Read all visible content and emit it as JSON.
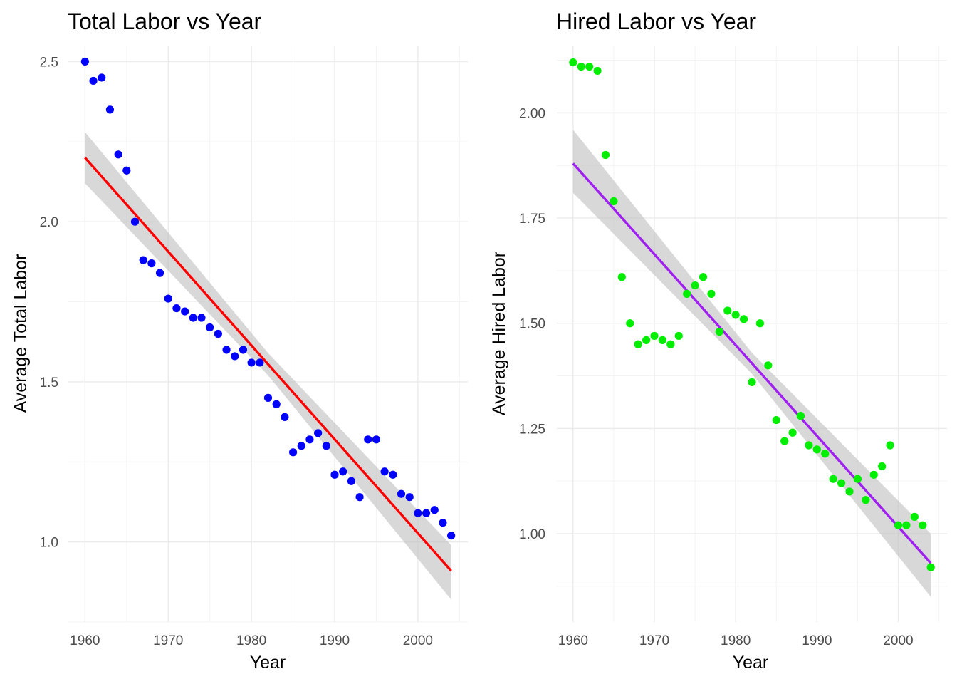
{
  "chart_data": [
    {
      "type": "scatter",
      "title": "Total Labor vs Year",
      "xlabel": "Year",
      "ylabel": "Average Total Labor",
      "xlim": [
        1958,
        2006
      ],
      "ylim": [
        0.75,
        2.55
      ],
      "x_ticks": [
        1960,
        1970,
        1980,
        1990,
        2000
      ],
      "x_tick_labels": [
        "1960",
        "1970",
        "1980",
        "1990",
        "2000"
      ],
      "y_ticks": [
        1.0,
        1.5,
        2.0,
        2.5
      ],
      "y_tick_labels": [
        "1.0",
        "1.5",
        "2.0",
        "2.5"
      ],
      "grid": true,
      "point_color": "#0000ff",
      "trend_color": "#ff0000",
      "band_color": "#bebebe",
      "x": [
        1960,
        1961,
        1962,
        1963,
        1964,
        1965,
        1966,
        1967,
        1968,
        1969,
        1970,
        1971,
        1972,
        1973,
        1974,
        1975,
        1976,
        1977,
        1978,
        1979,
        1980,
        1981,
        1982,
        1983,
        1984,
        1985,
        1986,
        1987,
        1988,
        1989,
        1990,
        1991,
        1992,
        1993,
        1994,
        1995,
        1996,
        1997,
        1998,
        1999,
        2000,
        2001,
        2002,
        2003,
        2004
      ],
      "y": [
        2.5,
        2.44,
        2.45,
        2.35,
        2.21,
        2.16,
        2.0,
        1.88,
        1.87,
        1.84,
        1.76,
        1.73,
        1.72,
        1.7,
        1.7,
        1.67,
        1.65,
        1.6,
        1.58,
        1.6,
        1.56,
        1.56,
        1.45,
        1.43,
        1.39,
        1.28,
        1.3,
        1.32,
        1.34,
        1.3,
        1.21,
        1.22,
        1.19,
        1.14,
        1.32,
        1.32,
        1.22,
        1.21,
        1.15,
        1.14,
        1.09,
        1.09,
        1.1,
        1.06,
        1.02
      ],
      "trend": {
        "x0": 1960,
        "y0": 2.2,
        "x1": 2004,
        "y1": 0.91
      },
      "band": {
        "lower0": 2.12,
        "upper0": 2.28,
        "lowerMid": 1.52,
        "upperMid": 1.59,
        "lower1": 0.82,
        "upper1": 0.99
      }
    },
    {
      "type": "scatter",
      "title": "Hired Labor vs Year",
      "xlabel": "Year",
      "ylabel": "Average Hired Labor",
      "xlim": [
        1958,
        2006
      ],
      "ylim": [
        0.79,
        2.16
      ],
      "x_ticks": [
        1960,
        1970,
        1980,
        1990,
        2000
      ],
      "x_tick_labels": [
        "1960",
        "1970",
        "1980",
        "1990",
        "2000"
      ],
      "y_ticks": [
        1.0,
        1.25,
        1.5,
        1.75,
        2.0
      ],
      "y_tick_labels": [
        "1.00",
        "1.25",
        "1.50",
        "1.75",
        "2.00"
      ],
      "grid": true,
      "point_color": "#00ee00",
      "trend_color": "#a020f0",
      "band_color": "#bebebe",
      "x": [
        1960,
        1961,
        1962,
        1963,
        1964,
        1965,
        1966,
        1967,
        1968,
        1969,
        1970,
        1971,
        1972,
        1973,
        1974,
        1975,
        1976,
        1977,
        1978,
        1979,
        1980,
        1981,
        1982,
        1983,
        1984,
        1985,
        1986,
        1987,
        1988,
        1989,
        1990,
        1991,
        1992,
        1993,
        1994,
        1995,
        1996,
        1997,
        1998,
        1999,
        2000,
        2001,
        2002,
        2003,
        2004
      ],
      "y": [
        2.12,
        2.11,
        2.11,
        2.1,
        1.9,
        1.79,
        1.61,
        1.5,
        1.45,
        1.46,
        1.47,
        1.46,
        1.45,
        1.47,
        1.57,
        1.59,
        1.61,
        1.57,
        1.48,
        1.53,
        1.52,
        1.51,
        1.36,
        1.5,
        1.4,
        1.27,
        1.22,
        1.24,
        1.28,
        1.21,
        1.2,
        1.19,
        1.13,
        1.12,
        1.1,
        1.13,
        1.08,
        1.14,
        1.16,
        1.21,
        1.02,
        1.02,
        1.04,
        1.02,
        0.92
      ],
      "trend": {
        "x0": 1960,
        "y0": 1.88,
        "x1": 2004,
        "y1": 0.93
      },
      "band": {
        "lower0": 1.81,
        "upper0": 1.96,
        "lowerMid": 1.38,
        "upperMid": 1.43,
        "lower1": 0.85,
        "upper1": 1.0
      }
    }
  ]
}
